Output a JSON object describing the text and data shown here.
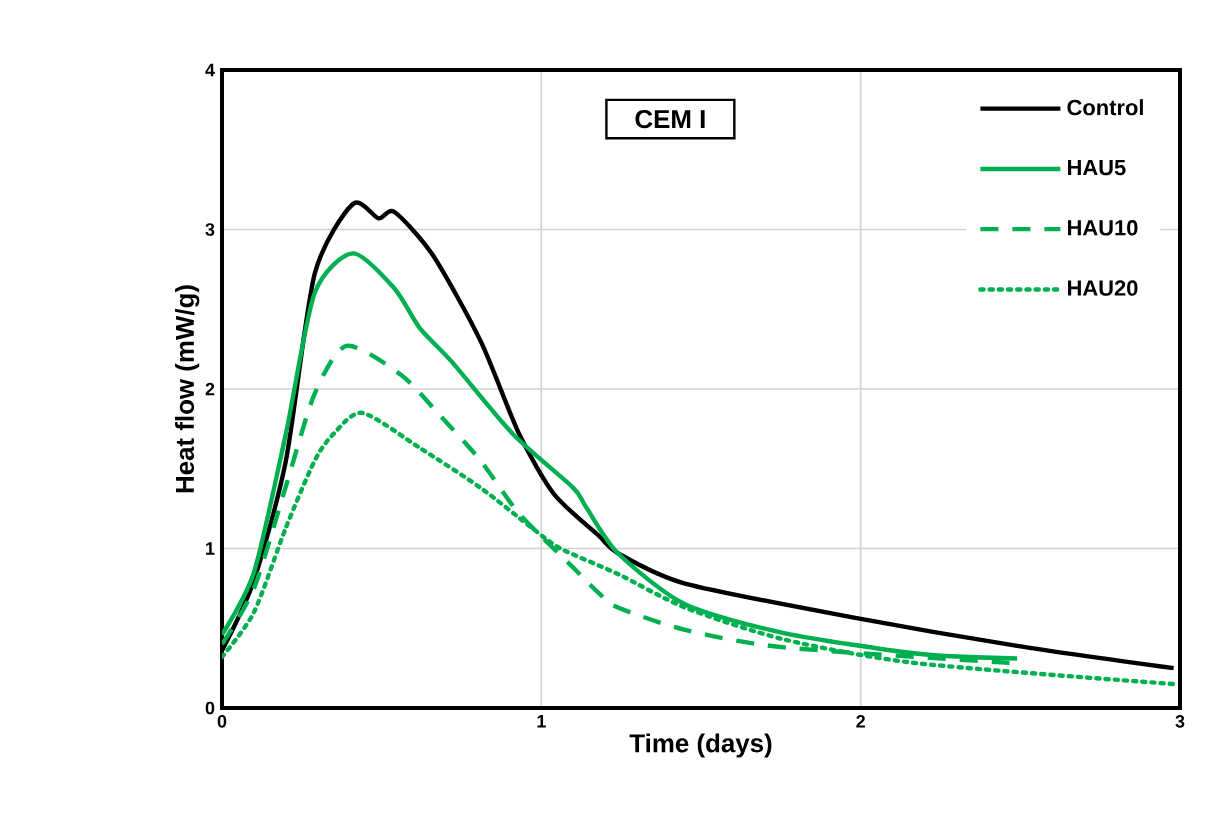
{
  "chart_data": {
    "type": "line",
    "xlabel": "Time (days)",
    "ylabel": "Heat flow (mW/g)",
    "annotations": [
      "CEM I"
    ],
    "xlim": [
      0,
      3
    ],
    "ylim": [
      0,
      4
    ],
    "xticks": [
      0,
      1,
      2,
      3
    ],
    "yticks": [
      0,
      1,
      2,
      3,
      4
    ],
    "grid": true,
    "legend": "top right",
    "marker": "none",
    "series": [
      {
        "name": "Control",
        "color": "#000000",
        "line_style": "solid",
        "x": [
          0,
          0.1,
          0.2,
          0.29,
          0.41,
          0.49,
          0.54,
          0.66,
          0.81,
          0.93,
          1.04,
          1.18,
          1.24,
          1.45,
          1.97,
          2.49,
          2.98
        ],
        "values": [
          0.36,
          0.8,
          1.55,
          2.72,
          3.16,
          3.07,
          3.11,
          2.84,
          2.3,
          1.72,
          1.34,
          1.08,
          0.97,
          0.78,
          0.57,
          0.39,
          0.25
        ]
      },
      {
        "name": "HAU5",
        "color": "#00b050",
        "line_style": "solid",
        "x": [
          0,
          0.1,
          0.2,
          0.29,
          0.41,
          0.54,
          0.62,
          0.72,
          0.91,
          1.1,
          1.14,
          1.24,
          1.45,
          1.76,
          2.18,
          2.49
        ],
        "values": [
          0.46,
          0.85,
          1.72,
          2.6,
          2.85,
          2.63,
          2.38,
          2.17,
          1.72,
          1.38,
          1.26,
          0.97,
          0.65,
          0.47,
          0.34,
          0.31
        ]
      },
      {
        "name": "HAU10",
        "color": "#00b050",
        "line_style": "dashed",
        "x": [
          0,
          0.1,
          0.2,
          0.29,
          0.39,
          0.56,
          0.68,
          0.81,
          0.93,
          1.1,
          1.18,
          1.24,
          1.45,
          1.76,
          2.49
        ],
        "values": [
          0.4,
          0.75,
          1.39,
          1.97,
          2.27,
          2.09,
          1.84,
          1.55,
          1.22,
          0.88,
          0.72,
          0.63,
          0.49,
          0.38,
          0.28
        ]
      },
      {
        "name": "HAU20",
        "color": "#00b050",
        "line_style": "dotted",
        "x": [
          0,
          0.1,
          0.2,
          0.29,
          0.35,
          0.44,
          0.62,
          0.81,
          0.97,
          1.06,
          1.24,
          1.45,
          1.76,
          2.18,
          2.98
        ],
        "values": [
          0.32,
          0.6,
          1.13,
          1.55,
          1.72,
          1.85,
          1.63,
          1.38,
          1.13,
          1.0,
          0.84,
          0.63,
          0.43,
          0.28,
          0.15
        ]
      }
    ]
  }
}
